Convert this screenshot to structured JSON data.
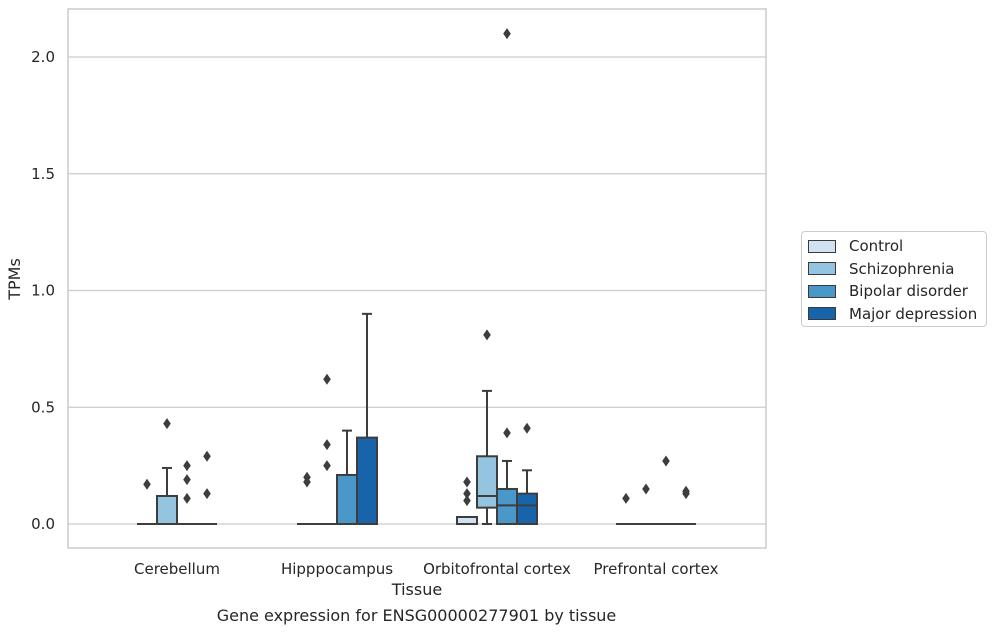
{
  "chart_data": {
    "type": "box",
    "title": "",
    "caption": "Gene expression for ENSG00000277901 by tissue",
    "xlabel": "Tissue",
    "ylabel": "TPMs",
    "ylim": [
      -0.1,
      2.22
    ],
    "yticks": [
      "0.0",
      "0.5",
      "1.0",
      "1.5",
      "2.0"
    ],
    "grid": "horizontal",
    "legend_position": "right",
    "categories": [
      "Cerebellum",
      "Hipppocampus",
      "Orbitofrontal cortex",
      "Prefrontal cortex"
    ],
    "series": [
      {
        "name": "Control",
        "color": "#d0e1f2",
        "boxes": [
          {
            "min": 0,
            "q1": 0,
            "median": 0,
            "q3": 0,
            "max": 0,
            "outliers": [
              0.17
            ]
          },
          {
            "min": 0,
            "q1": 0,
            "median": 0,
            "q3": 0,
            "max": 0,
            "outliers": [
              0.18,
              0.2
            ]
          },
          {
            "min": 0,
            "q1": 0,
            "median": 0,
            "q3": 0.03,
            "max": 0.03,
            "outliers": [
              0.1,
              0.13,
              0.18
            ]
          },
          {
            "min": 0,
            "q1": 0,
            "median": 0,
            "q3": 0,
            "max": 0,
            "outliers": [
              0.11
            ]
          }
        ]
      },
      {
        "name": "Schizophrenia",
        "color": "#94c4df",
        "boxes": [
          {
            "min": 0,
            "q1": 0,
            "median": 0,
            "q3": 0.12,
            "max": 0.24,
            "outliers": [
              0.43
            ]
          },
          {
            "min": 0,
            "q1": 0,
            "median": 0,
            "q3": 0,
            "max": 0,
            "outliers": [
              0.25,
              0.34,
              0.62
            ]
          },
          {
            "min": 0,
            "q1": 0.07,
            "median": 0.12,
            "q3": 0.29,
            "max": 0.57,
            "outliers": [
              0.81
            ]
          },
          {
            "min": 0,
            "q1": 0,
            "median": 0,
            "q3": 0,
            "max": 0,
            "outliers": [
              0.15
            ]
          }
        ]
      },
      {
        "name": "Bipolar disorder",
        "color": "#4a98c9",
        "boxes": [
          {
            "min": 0,
            "q1": 0,
            "median": 0,
            "q3": 0,
            "max": 0,
            "outliers": [
              0.11,
              0.19,
              0.25
            ]
          },
          {
            "min": 0,
            "q1": 0,
            "median": 0,
            "q3": 0.21,
            "max": 0.4,
            "outliers": []
          },
          {
            "min": 0,
            "q1": 0,
            "median": 0.08,
            "q3": 0.15,
            "max": 0.27,
            "outliers": [
              0.39,
              2.1
            ]
          },
          {
            "min": 0,
            "q1": 0,
            "median": 0,
            "q3": 0,
            "max": 0,
            "outliers": [
              0.27
            ]
          }
        ]
      },
      {
        "name": "Major depression",
        "color": "#1764ab",
        "boxes": [
          {
            "min": 0,
            "q1": 0,
            "median": 0,
            "q3": 0,
            "max": 0,
            "outliers": [
              0.13,
              0.29
            ]
          },
          {
            "min": 0,
            "q1": 0,
            "median": 0,
            "q3": 0.37,
            "max": 0.9,
            "outliers": []
          },
          {
            "min": 0,
            "q1": 0,
            "median": 0.08,
            "q3": 0.13,
            "max": 0.23,
            "outliers": [
              0.41
            ]
          },
          {
            "min": 0,
            "q1": 0,
            "median": 0,
            "q3": 0,
            "max": 0,
            "outliers": [
              0.13,
              0.14
            ]
          }
        ]
      }
    ]
  }
}
